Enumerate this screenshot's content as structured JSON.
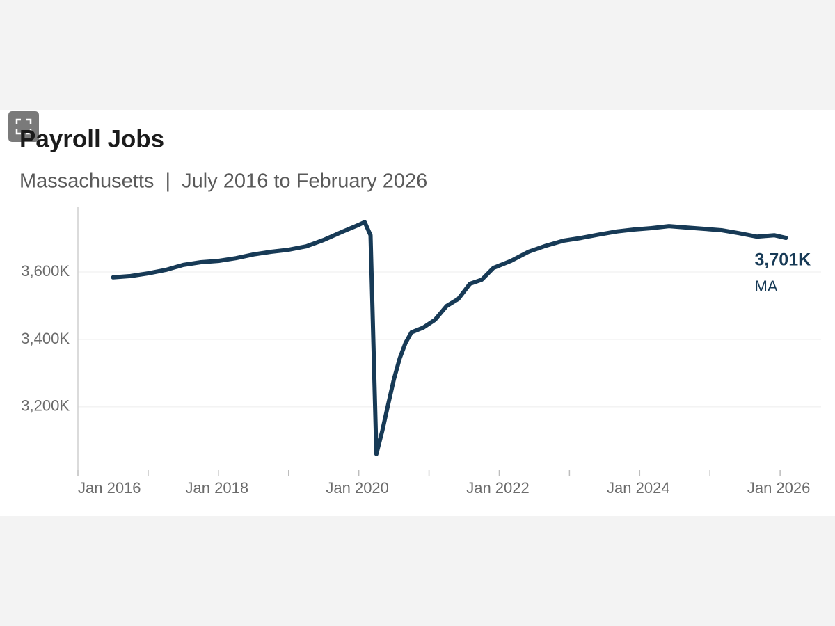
{
  "chart_data": {
    "type": "line",
    "title": "Payroll Jobs",
    "subtitle": "Massachusetts  |  July 2016 to February 2026",
    "x": [
      "2016-07",
      "2016-10",
      "2017-01",
      "2017-04",
      "2017-07",
      "2017-10",
      "2018-01",
      "2018-04",
      "2018-07",
      "2018-10",
      "2019-01",
      "2019-04",
      "2019-07",
      "2019-10",
      "2020-01",
      "2020-02",
      "2020-03",
      "2020-04",
      "2020-05",
      "2020-06",
      "2020-07",
      "2020-08",
      "2020-09",
      "2020-10",
      "2020-12",
      "2021-02",
      "2021-04",
      "2021-06",
      "2021-08",
      "2021-10",
      "2021-12",
      "2022-03",
      "2022-06",
      "2022-09",
      "2022-12",
      "2023-03",
      "2023-06",
      "2023-09",
      "2023-12",
      "2024-03",
      "2024-06",
      "2024-09",
      "2024-12",
      "2025-03",
      "2025-06",
      "2025-09",
      "2025-12",
      "2026-02"
    ],
    "series": [
      {
        "name": "MA",
        "color": "#173a56",
        "values": [
          3584,
          3588,
          3596,
          3606,
          3621,
          3629,
          3633,
          3641,
          3652,
          3660,
          3666,
          3676,
          3695,
          3718,
          3740,
          3748,
          3709,
          3060,
          3128,
          3206,
          3282,
          3344,
          3390,
          3421,
          3435,
          3458,
          3499,
          3520,
          3565,
          3577,
          3612,
          3633,
          3660,
          3678,
          3693,
          3701,
          3711,
          3720,
          3726,
          3730,
          3736,
          3732,
          3728,
          3724,
          3715,
          3705,
          3709,
          3701
        ],
        "value_labels": [
          null,
          null,
          null,
          null,
          null,
          null,
          null,
          null,
          null,
          null,
          null,
          null,
          null,
          null,
          null,
          null,
          null,
          null,
          null,
          null,
          null,
          null,
          null,
          null,
          null,
          null,
          null,
          null,
          null,
          null,
          null,
          null,
          null,
          null,
          null,
          null,
          null,
          null,
          null,
          null,
          null,
          null,
          null,
          null,
          null,
          null,
          null,
          "3,701K"
        ]
      }
    ],
    "xlim": [
      "2016-01",
      "2026-08"
    ],
    "xticks": [
      {
        "value": "2016-01",
        "label": "Jan 2016"
      },
      {
        "value": "2018-01",
        "label": "Jan 2018"
      },
      {
        "value": "2020-01",
        "label": "Jan 2020"
      },
      {
        "value": "2022-01",
        "label": "Jan 2022"
      },
      {
        "value": "2024-01",
        "label": "Jan 2024"
      },
      {
        "value": "2026-01",
        "label": "Jan 2026"
      }
    ],
    "xminorticks": [
      "2017-01",
      "2019-01",
      "2021-01",
      "2023-01",
      "2025-01"
    ],
    "ylim": [
      3012,
      3792
    ],
    "yticks": [
      {
        "value": 3200,
        "label": "3,200K"
      },
      {
        "value": 3400,
        "label": "3,400K"
      },
      {
        "value": 3600,
        "label": "3,600K"
      }
    ],
    "grid": true
  }
}
